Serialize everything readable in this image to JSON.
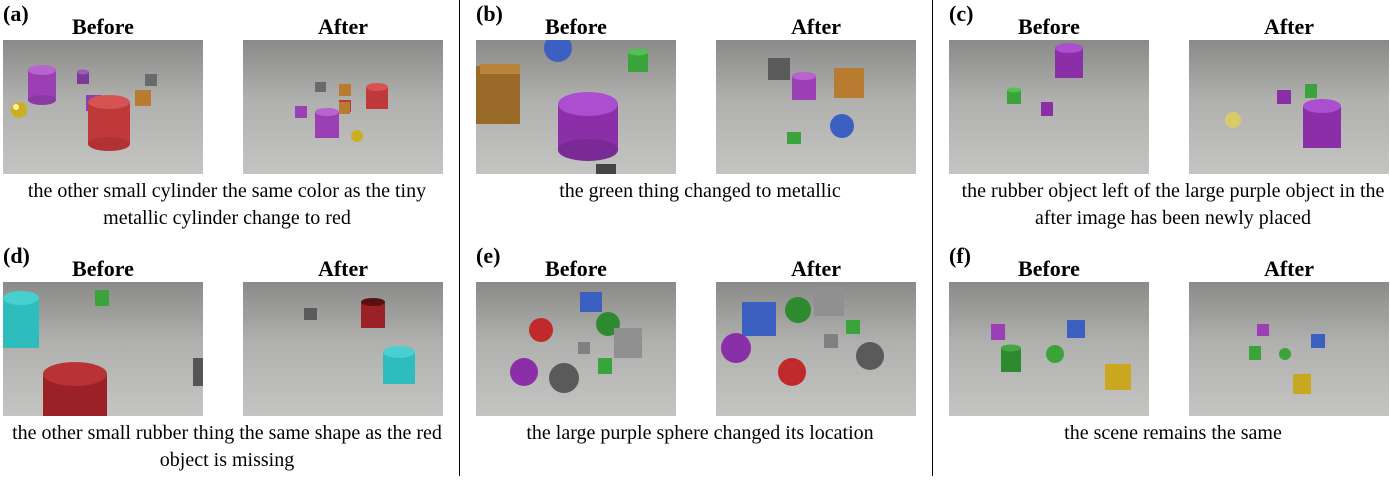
{
  "panels": [
    {
      "label": "(a)",
      "before": "Before",
      "after": "After",
      "caption": "the other small cylinder the same color as the tiny metallic cylinder change to red"
    },
    {
      "label": "(b)",
      "before": "Before",
      "after": "After",
      "caption": "the green thing changed to metallic"
    },
    {
      "label": "(c)",
      "before": "Before",
      "after": "After",
      "caption": "the rubber object left of the large purple object in the after image has been newly placed"
    },
    {
      "label": "(d)",
      "before": "Before",
      "after": "After",
      "caption": "the other small rubber thing the same shape as the red object is missing"
    },
    {
      "label": "(e)",
      "before": "Before",
      "after": "After",
      "caption": "the large purple sphere changed its location"
    },
    {
      "label": "(f)",
      "before": "Before",
      "after": "After",
      "caption": "the scene remains the same"
    }
  ]
}
